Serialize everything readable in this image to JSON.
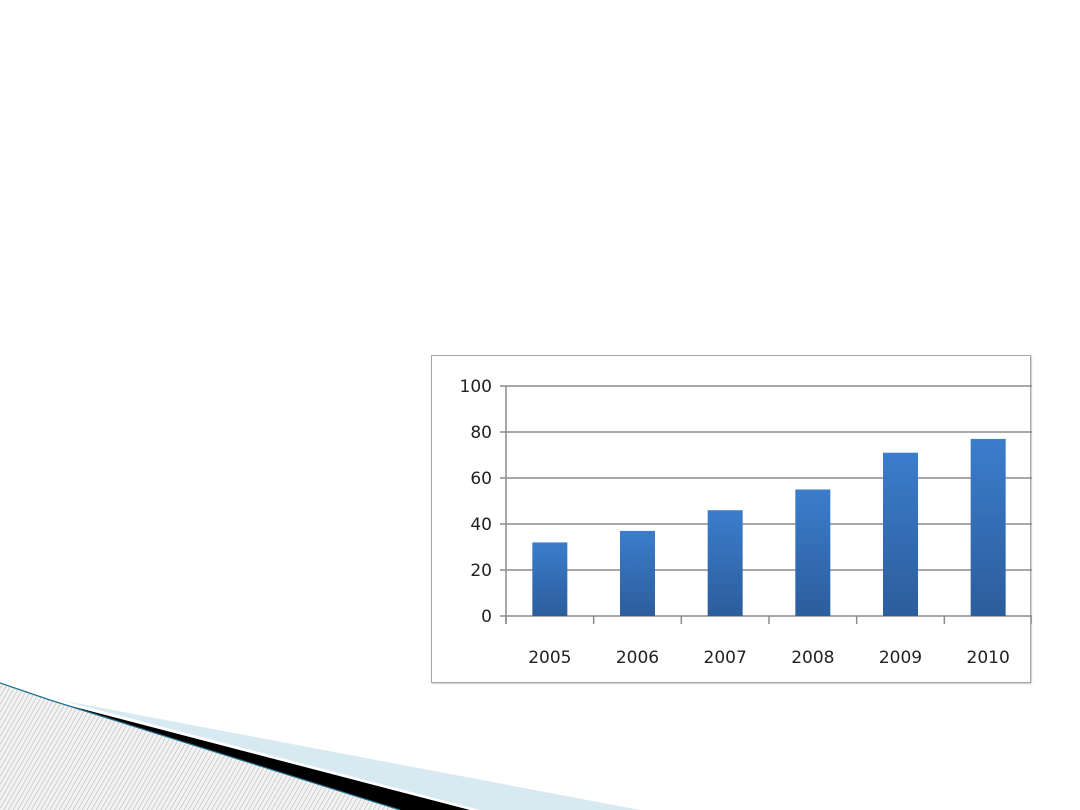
{
  "chart_data": {
    "type": "bar",
    "title": "",
    "xlabel": "",
    "ylabel": "",
    "categories": [
      "2005",
      "2006",
      "2007",
      "2008",
      "2009",
      "2010"
    ],
    "values": [
      32,
      37,
      46,
      55,
      71,
      77
    ],
    "ylim": [
      0,
      100
    ],
    "yticks": [
      "0",
      "20",
      "40",
      "60",
      "80",
      "100"
    ],
    "grid": true,
    "legend": "none",
    "bar_color_top": "#3b7dcc",
    "bar_color_bottom": "#2c5d9c"
  }
}
